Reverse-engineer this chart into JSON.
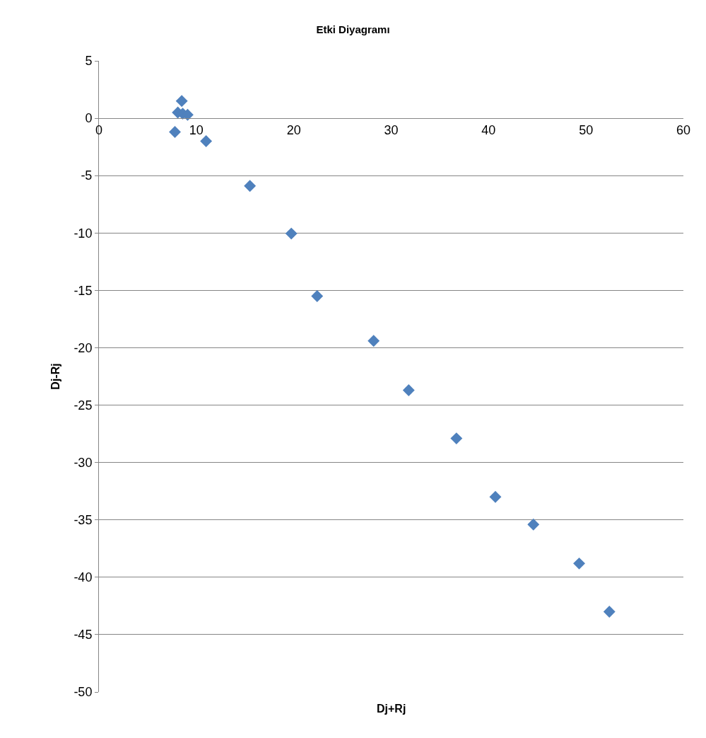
{
  "chart_data": {
    "type": "scatter",
    "title": "Etki Diyagramı",
    "xlabel": "Dj+Rj",
    "ylabel": "Dj-Rj",
    "x": [
      8.5,
      8.1,
      8.6,
      9.1,
      7.8,
      11.0,
      15.5,
      19.75,
      22.4,
      28.2,
      31.8,
      36.7,
      40.7,
      44.6,
      49.3,
      52.4
    ],
    "values": [
      1.5,
      0.5,
      0.4,
      0.3,
      -1.2,
      -2.0,
      -5.9,
      -10.05,
      -15.5,
      -19.4,
      -23.7,
      -27.9,
      -33.0,
      -35.4,
      -38.8,
      -43.0
    ],
    "color": "#4f81bd",
    "marker": "diamond",
    "xlim": [
      0,
      60
    ],
    "xticks": [
      0,
      10,
      20,
      30,
      40,
      50,
      60
    ],
    "ylim": [
      -50,
      5
    ],
    "yticks": [
      -50,
      -45,
      -40,
      -35,
      -30,
      -25,
      -20,
      -15,
      -10,
      -5,
      0,
      5
    ],
    "grid": "y",
    "legend": false
  }
}
